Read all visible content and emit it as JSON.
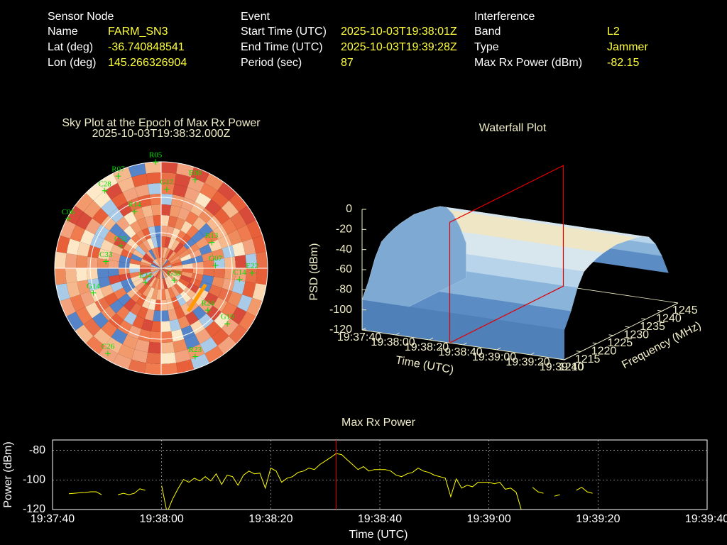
{
  "header": [
    {
      "title": "Sensor Node",
      "rows": [
        {
          "label": "Name",
          "value": "FARM_SN3"
        },
        {
          "label": "Lat (deg)",
          "value": "-36.740848541"
        },
        {
          "label": "Lon (deg)",
          "value": "145.266326904"
        }
      ]
    },
    {
      "title": "Event",
      "rows": [
        {
          "label": "Start Time (UTC)",
          "value": "2025-10-03T19:38:01Z"
        },
        {
          "label": "End Time (UTC)",
          "value": "2025-10-03T19:39:28Z"
        },
        {
          "label": "Period (sec)",
          "value": "87"
        }
      ]
    },
    {
      "title": "Interference",
      "rows": [
        {
          "label": "Band",
          "value": "L2"
        },
        {
          "label": "Type",
          "value": "Jammer"
        },
        {
          "label": "Max Rx Power (dBm)",
          "value": "-82.15"
        }
      ]
    }
  ],
  "chart_data": [
    {
      "type": "polar",
      "title": "Sky Plot at the Epoch of Max Rx Power",
      "subtitle": "2025-10-03T19:38:32.000Z",
      "rlim": [
        90,
        0
      ],
      "rticks": [
        0,
        30,
        60
      ],
      "label_color": "#00e000",
      "satellites": [
        {
          "name": "R05",
          "az": 357,
          "el": 0
        },
        {
          "name": "G17",
          "az": 4,
          "el": 23
        },
        {
          "name": "E08",
          "az": 21,
          "el": 10
        },
        {
          "name": "R07",
          "az": 335,
          "el": 4
        },
        {
          "name": "C28",
          "az": 324,
          "el": 9
        },
        {
          "name": "R14",
          "az": 335,
          "el": 37
        },
        {
          "name": "C32",
          "az": 299,
          "el": 51
        },
        {
          "name": "C33",
          "az": 277,
          "el": 43
        },
        {
          "name": "E24",
          "az": 228,
          "el": 72
        },
        {
          "name": "G30",
          "az": 133,
          "el": 75
        },
        {
          "name": "G07",
          "az": 87,
          "el": 44
        },
        {
          "name": "R13",
          "az": 63,
          "el": 42
        },
        {
          "name": "C14",
          "az": 98,
          "el": 23
        },
        {
          "name": "R24",
          "az": 132,
          "el": 37
        },
        {
          "name": "G19",
          "az": 130,
          "el": 17
        },
        {
          "name": "R23",
          "az": 159,
          "el": 10
        },
        {
          "name": "C26",
          "az": 212,
          "el": 5
        },
        {
          "name": "C06",
          "az": 298,
          "el": 1
        },
        {
          "name": "G14",
          "az": 250,
          "el": 29
        },
        {
          "name": "E22",
          "az": 93,
          "el": 13
        }
      ],
      "track": {
        "az": [
          110,
          148
        ],
        "el": [
          50,
          47
        ],
        "color": "#ff9a00"
      }
    },
    {
      "type": "waterfall",
      "title": "Waterfall Plot",
      "xlabel": "Time (UTC)",
      "ylabel": "Frequency (MHz)",
      "zlabel": "PSD (dBm)",
      "xlim": [
        "19:37:40",
        "19:39:40"
      ],
      "xticks": [
        "19:37:40",
        "19:38:00",
        "19:38:20",
        "19:38:40",
        "19:39:00",
        "19:39:20",
        "19:39:40"
      ],
      "ylim": [
        1210,
        1245
      ],
      "yticks": [
        1210,
        1215,
        1220,
        1225,
        1230,
        1235,
        1240,
        1245
      ],
      "zlim": [
        -120,
        0
      ],
      "zticks": [
        0,
        -20,
        -40,
        -60,
        -80,
        -100,
        -120
      ],
      "profile": {
        "frequency": [
          1210,
          1212,
          1214,
          1216,
          1218,
          1220,
          1222,
          1224,
          1226,
          1228,
          1230,
          1232,
          1234,
          1236,
          1238,
          1240,
          1242
        ],
        "values": [
          -90,
          -75,
          -55,
          -42,
          -38,
          -35,
          -33,
          -32,
          -31,
          -32,
          -33,
          -34,
          -36,
          -40,
          -50,
          -65,
          -85
        ]
      },
      "marker_x": "19:38:32",
      "marker_color": "#e00000"
    },
    {
      "type": "line",
      "title": "Max Rx Power",
      "xlabel": "Time (UTC)",
      "ylabel": "Power (dBm)",
      "color": "#ffff00",
      "grid": true,
      "xlim": [
        "19:37:40",
        "19:39:40"
      ],
      "xticks": [
        "19:37:40",
        "19:38:00",
        "19:38:20",
        "19:38:40",
        "19:39:00",
        "19:39:20",
        "19:39:40"
      ],
      "ylim": [
        -120,
        -73
      ],
      "yticks": [
        -80,
        -100,
        -120
      ],
      "marker_x": "19:38:32",
      "marker_color": "#e00000",
      "x": [
        "19:37:43",
        "19:37:44",
        "19:37:45",
        "19:37:46",
        "19:37:47",
        "19:37:48",
        "19:37:49",
        "19:37:50",
        "19:37:51",
        "19:37:52",
        "19:37:53",
        "19:37:54",
        "19:37:55",
        "19:37:56",
        "19:37:57",
        "19:37:58",
        "19:37:59",
        "19:38:00",
        "19:38:01",
        "19:38:02",
        "19:38:03",
        "19:38:04",
        "19:38:05",
        "19:38:06",
        "19:38:07",
        "19:38:08",
        "19:38:09",
        "19:38:10",
        "19:38:11",
        "19:38:12",
        "19:38:13",
        "19:38:14",
        "19:38:15",
        "19:38:16",
        "19:38:17",
        "19:38:18",
        "19:38:19",
        "19:38:20",
        "19:38:21",
        "19:38:22",
        "19:38:23",
        "19:38:24",
        "19:38:25",
        "19:38:26",
        "19:38:27",
        "19:38:28",
        "19:38:29",
        "19:38:30",
        "19:38:31",
        "19:38:32",
        "19:38:33",
        "19:38:34",
        "19:38:35",
        "19:38:36",
        "19:38:37",
        "19:38:38",
        "19:38:39",
        "19:38:40",
        "19:38:41",
        "19:38:42",
        "19:38:43",
        "19:38:44",
        "19:38:45",
        "19:38:46",
        "19:38:47",
        "19:38:48",
        "19:38:49",
        "19:38:50",
        "19:38:51",
        "19:38:52",
        "19:38:53",
        "19:38:54",
        "19:38:55",
        "19:38:56",
        "19:38:57",
        "19:38:58",
        "19:38:59",
        "19:39:00",
        "19:39:01",
        "19:39:02",
        "19:39:03",
        "19:39:04",
        "19:39:05",
        "19:39:06",
        "19:39:07",
        "19:39:08",
        "19:39:09",
        "19:39:10",
        "19:39:11",
        "19:39:12",
        "19:39:13",
        "19:39:14",
        "19:39:15",
        "19:39:16",
        "19:39:17",
        "19:39:18",
        "19:39:19"
      ],
      "values": [
        -109.3,
        -109,
        -108.7,
        -108.5,
        -108,
        -108,
        -110,
        null,
        null,
        -110,
        -109,
        -110,
        -109,
        -106,
        -107,
        null,
        null,
        -104,
        -122,
        -113,
        -106,
        -99.7,
        -101.6,
        -98.8,
        -100.7,
        -97.8,
        -100.7,
        -95.9,
        -103,
        -96.8,
        -97.8,
        -103.6,
        -96.8,
        -94,
        -95.9,
        -95.4,
        -105.5,
        -92,
        -94,
        -101.6,
        -98.8,
        -97.8,
        -94.9,
        -94,
        -92,
        -93,
        -89.6,
        -87.2,
        -84.8,
        -82.15,
        -82.9,
        -86.3,
        -89.6,
        -93,
        -91,
        -94,
        -93,
        -93,
        -93,
        -94,
        -96.8,
        -97.8,
        -95.9,
        -94.9,
        -92,
        -94,
        -94.9,
        -96.8,
        -97.8,
        -98.8,
        -111.3,
        -99.3,
        -105.5,
        -103.6,
        -104.6,
        -101.6,
        -101.6,
        -101.6,
        -102.6,
        -101.6,
        -106.3,
        -105.5,
        -108.4,
        -121,
        null,
        -105,
        -108,
        -109,
        null,
        -111,
        -110,
        null,
        null,
        -107,
        -105,
        -108,
        -109
      ]
    }
  ]
}
